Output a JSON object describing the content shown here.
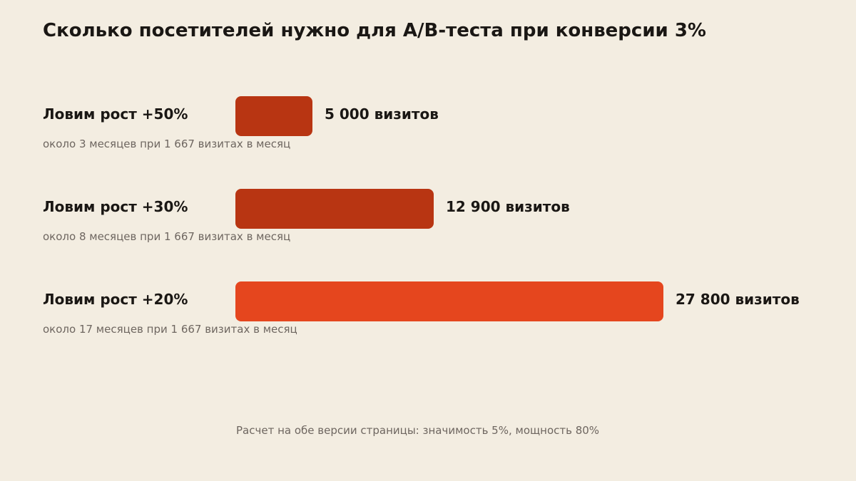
{
  "title": "Сколько посетителей нужно для A/B-теста при конверсии 3%",
  "footnote": "Расчет на обе версии страницы: значимость 5%, мощность 80%",
  "chart_data": {
    "type": "bar",
    "orientation": "horizontal",
    "title": "Сколько посетителей нужно для A/B-теста при конверсии 3%",
    "categories": [
      "Ловим рост +50%",
      "Ловим рост +30%",
      "Ловим рост +20%"
    ],
    "values": [
      5000,
      12900,
      27800
    ],
    "value_labels": [
      "5 000 визитов",
      "12 900 визитов",
      "27 800 визитов"
    ],
    "subtitles": [
      "около 3 месяцев при 1 667 визитах в месяц",
      "около 8 месяцев при 1 667 визитах в месяц",
      "около 17 месяцев при 1 667 визитах в месяц"
    ],
    "colors": [
      "#b83512",
      "#b83512",
      "#e5461e"
    ],
    "xlim": [
      0,
      27800
    ],
    "grid": false,
    "legend": "none"
  }
}
